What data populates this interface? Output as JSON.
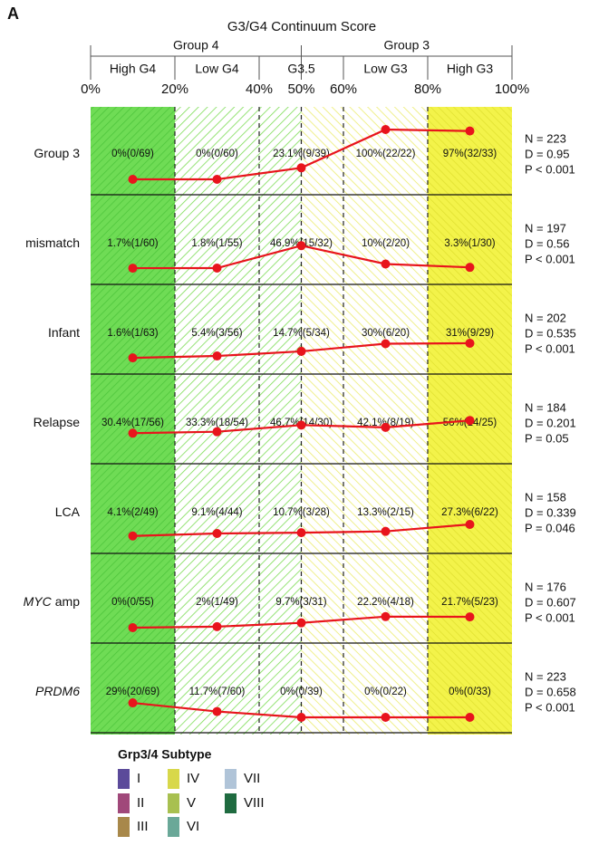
{
  "chart_data": {
    "type": "line",
    "panel_label": "A",
    "title": "G3/G4 Continuum Score",
    "groups": [
      "Group 4",
      "Group 3"
    ],
    "zones": [
      "High G4",
      "Low G4",
      "G3.5",
      "Low G3",
      "High G3"
    ],
    "xlim": [
      0,
      100
    ],
    "xticks": [
      {
        "value": 0,
        "label": "0%"
      },
      {
        "value": 20,
        "label": "20%"
      },
      {
        "value": 40,
        "label": "40%"
      },
      {
        "value": 50,
        "label": "50%"
      },
      {
        "value": 60,
        "label": "60%"
      },
      {
        "value": 80,
        "label": "80%"
      },
      {
        "value": 100,
        "label": "100%"
      }
    ],
    "zone_fills": [
      "green-solid",
      "green-hatch",
      "green-hatch",
      "yellow-hatch",
      "yellow-hatch",
      "yellow-solid"
    ],
    "ylim": [
      0,
      100
    ],
    "x": [
      10,
      30,
      50,
      70,
      90
    ],
    "color": "#e8141c",
    "rows": [
      {
        "name": [
          "Group 3"
        ],
        "italic": [
          false
        ],
        "values": [
          0,
          0,
          23.1,
          100,
          97
        ],
        "value_labels": [
          "0%(0/69)",
          "0%(0/60)",
          "23.1%(9/39)",
          "100%(22/22)",
          "97%(32/33)"
        ],
        "stats": [
          "N = 223",
          "D = 0.95",
          "P < 0.001"
        ]
      },
      {
        "name": [
          "mismatch"
        ],
        "italic": [
          false
        ],
        "values": [
          1.7,
          1.8,
          46.9,
          10,
          3.3
        ],
        "value_labels": [
          "1.7%(1/60)",
          "1.8%(1/55)",
          "46.9%(15/32)",
          "10%(2/20)",
          "3.3%(1/30)"
        ],
        "stats": [
          "N = 197",
          "D = 0.56",
          "P < 0.001"
        ]
      },
      {
        "name": [
          "Infant"
        ],
        "italic": [
          false
        ],
        "values": [
          1.6,
          5.4,
          14.7,
          30,
          31
        ],
        "value_labels": [
          "1.6%(1/63)",
          "5.4%(3/56)",
          "14.7%(5/34)",
          "30%(6/20)",
          "31%(9/29)"
        ],
        "stats": [
          "N = 202",
          "D = 0.535",
          "P < 0.001"
        ]
      },
      {
        "name": [
          "Relapse"
        ],
        "italic": [
          false
        ],
        "values": [
          30.4,
          33.3,
          46.7,
          42.1,
          56
        ],
        "value_labels": [
          "30.4%(17/56)",
          "33.3%(18/54)",
          "46.7%(14/30)",
          "42.1%(8/19)",
          "56%(14/25)"
        ],
        "stats": [
          "N = 184",
          "D = 0.201",
          "P = 0.05"
        ]
      },
      {
        "name": [
          "LCA"
        ],
        "italic": [
          false
        ],
        "values": [
          4.1,
          9.1,
          10.7,
          13.3,
          27.3
        ],
        "value_labels": [
          "4.1%(2/49)",
          "9.1%(4/44)",
          "10.7%(3/28)",
          "13.3%(2/15)",
          "27.3%(6/22)"
        ],
        "stats": [
          "N = 158",
          "D = 0.339",
          "P = 0.046"
        ]
      },
      {
        "name": [
          "MYC",
          "amp"
        ],
        "italic": [
          true,
          false
        ],
        "values": [
          0,
          2,
          9.7,
          22.2,
          21.7
        ],
        "value_labels": [
          "0%(0/55)",
          "2%(1/49)",
          "9.7%(3/31)",
          "22.2%(4/18)",
          "21.7%(5/23)"
        ],
        "stats": [
          "N = 176",
          "D = 0.607",
          "P < 0.001"
        ]
      },
      {
        "name": [
          "PRDM6"
        ],
        "italic": [
          true
        ],
        "values": [
          29,
          11.7,
          0,
          0,
          0
        ],
        "value_labels": [
          "29%(20/69)",
          "11.7%(7/60)",
          "0%(0/39)",
          "0%(0/22)",
          "0%(0/33)"
        ],
        "stats": [
          "N = 223",
          "D = 0.658",
          "P < 0.001"
        ]
      }
    ],
    "legend": {
      "title": "Grp3/4 Subtype",
      "entries": [
        {
          "name": "I",
          "color": "#5b4a9a"
        },
        {
          "name": "II",
          "color": "#a0487a"
        },
        {
          "name": "III",
          "color": "#a8884a"
        },
        {
          "name": "IV",
          "color": "#d8d84a"
        },
        {
          "name": "V",
          "color": "#a8c050"
        },
        {
          "name": "VI",
          "color": "#6aa898"
        },
        {
          "name": "VII",
          "color": "#b0c4d8"
        },
        {
          "name": "VIII",
          "color": "#1f6b40"
        }
      ]
    }
  }
}
